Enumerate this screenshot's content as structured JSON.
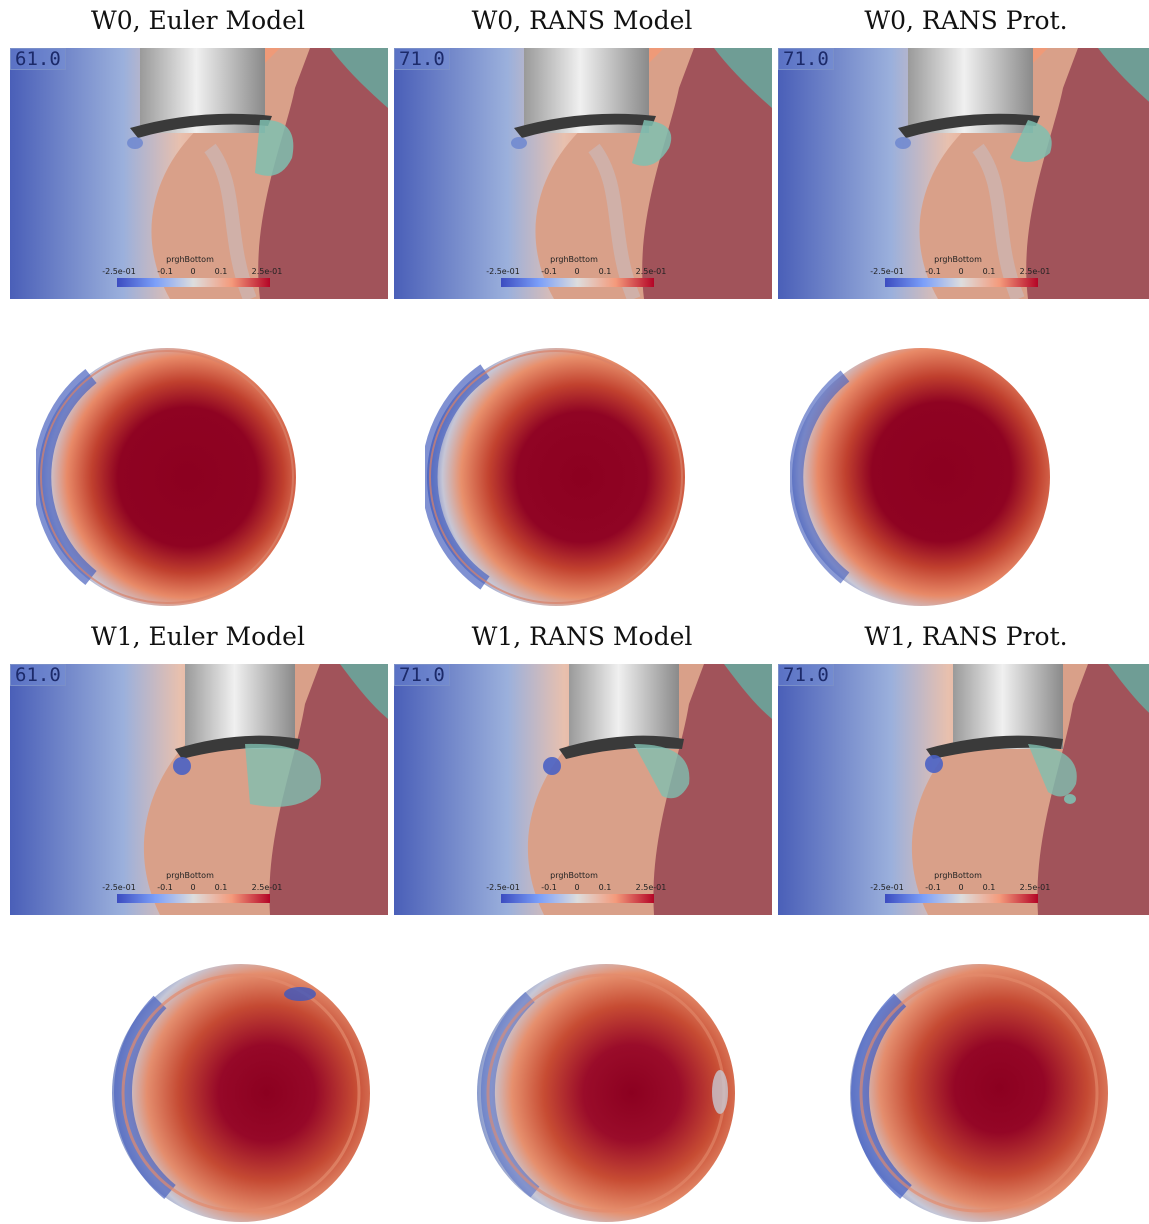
{
  "panels": [
    {
      "title": "W0, Euler Model",
      "timestep": "61.0"
    },
    {
      "title": "W0, RANS Model",
      "timestep": "71.0"
    },
    {
      "title": "W0, RANS Prot.",
      "timestep": "71.0"
    },
    {
      "title": "W1, Euler Model",
      "timestep": "61.0"
    },
    {
      "title": "W1, RANS Model",
      "timestep": "71.0"
    },
    {
      "title": "W1, RANS Prot.",
      "timestep": "71.0"
    }
  ],
  "colorbar": {
    "title": "prghBottom",
    "ticks": [
      "-2.5e-01",
      "-0.1",
      "0",
      "0.1",
      "2.5e-01"
    ]
  },
  "colors": {
    "low": "#3b4cc0",
    "mid": "#dddddd",
    "high": "#b40426",
    "core": "#8c0020"
  }
}
